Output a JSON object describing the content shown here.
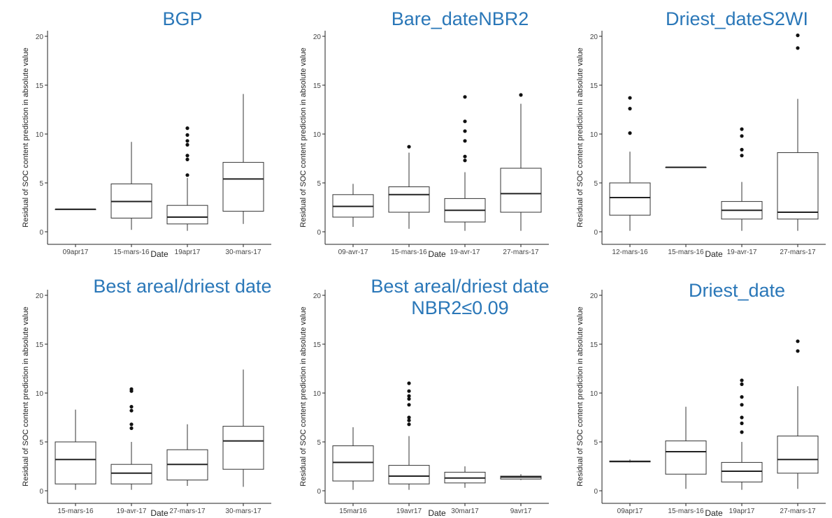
{
  "common": {
    "ylabel": "Residual of SOC content prediction in absolute value",
    "xlabel": "Date",
    "ylim": [
      0,
      20
    ],
    "yticks": [
      "0",
      "5",
      "10",
      "15",
      "20"
    ],
    "title_color": "#2a77b8"
  },
  "chart_data": [
    {
      "type": "boxplot",
      "title": "BGP",
      "subtitle": "",
      "xlabel": "Date",
      "ylabel": "Residual of SOC content prediction in absolute value",
      "ylim": [
        0,
        20
      ],
      "categories": [
        "09apr17",
        "15-mars-16",
        "19apr17",
        "30-mars-17"
      ],
      "boxes": [
        {
          "q1": 2.3,
          "median": 2.3,
          "q3": 2.3,
          "whisker_low": 2.3,
          "whisker_high": 2.3,
          "outliers": []
        },
        {
          "q1": 1.4,
          "median": 3.1,
          "q3": 4.9,
          "whisker_low": 0.2,
          "whisker_high": 9.2,
          "outliers": []
        },
        {
          "q1": 0.8,
          "median": 1.5,
          "q3": 2.7,
          "whisker_low": 0.1,
          "whisker_high": 5.5,
          "outliers": [
            5.8,
            7.4,
            7.8,
            8.9,
            9.3,
            9.9,
            10.6
          ]
        },
        {
          "q1": 2.1,
          "median": 5.4,
          "q3": 7.1,
          "whisker_low": 0.8,
          "whisker_high": 14.1,
          "outliers": []
        }
      ]
    },
    {
      "type": "boxplot",
      "title": "Bare_dateNBR2",
      "subtitle": "",
      "xlabel": "Date",
      "ylabel": "Residual of SOC content prediction in absolute value",
      "ylim": [
        0,
        20
      ],
      "categories": [
        "09-avr-17",
        "15-mars-16",
        "19-avr-17",
        "27-mars-17"
      ],
      "boxes": [
        {
          "q1": 1.5,
          "median": 2.6,
          "q3": 3.8,
          "whisker_low": 0.5,
          "whisker_high": 4.9,
          "outliers": []
        },
        {
          "q1": 2.0,
          "median": 3.8,
          "q3": 4.6,
          "whisker_low": 0.3,
          "whisker_high": 8.1,
          "outliers": [
            8.7
          ]
        },
        {
          "q1": 1.0,
          "median": 2.2,
          "q3": 3.4,
          "whisker_low": 0.1,
          "whisker_high": 6.1,
          "outliers": [
            7.3,
            7.7,
            9.3,
            10.3,
            11.3,
            13.8
          ]
        },
        {
          "q1": 2.0,
          "median": 3.9,
          "q3": 6.5,
          "whisker_low": 0.1,
          "whisker_high": 13.1,
          "outliers": [
            14.0
          ]
        }
      ]
    },
    {
      "type": "boxplot",
      "title": "Driest_dateS2WI",
      "subtitle": "",
      "xlabel": "Date",
      "ylabel": "Residual of SOC content prediction in absolute value",
      "ylim": [
        0,
        20
      ],
      "categories": [
        "12-mars-16",
        "15-mars-16",
        "19-avr-17",
        "27-mars-17"
      ],
      "boxes": [
        {
          "q1": 1.7,
          "median": 3.5,
          "q3": 5.0,
          "whisker_low": 0.1,
          "whisker_high": 8.2,
          "outliers": [
            10.1,
            12.6,
            13.7
          ]
        },
        {
          "q1": 6.6,
          "median": 6.6,
          "q3": 6.6,
          "whisker_low": 6.6,
          "whisker_high": 6.6,
          "outliers": []
        },
        {
          "q1": 1.3,
          "median": 2.2,
          "q3": 3.1,
          "whisker_low": 0.1,
          "whisker_high": 5.1,
          "outliers": [
            7.8,
            8.4,
            9.8,
            10.5
          ]
        },
        {
          "q1": 1.3,
          "median": 2.0,
          "q3": 8.1,
          "whisker_low": 0.1,
          "whisker_high": 13.6,
          "outliers": [
            18.8,
            20.1
          ]
        }
      ]
    },
    {
      "type": "boxplot",
      "title": "Best areal/driest date",
      "subtitle": "",
      "xlabel": "Date",
      "ylabel": "Residual of SOC content prediction in absolute value",
      "ylim": [
        0,
        20
      ],
      "categories": [
        "15-mars-16",
        "19-avr-17",
        "27-mars-17",
        "30-mars-17"
      ],
      "boxes": [
        {
          "q1": 0.7,
          "median": 3.2,
          "q3": 5.0,
          "whisker_low": 0.1,
          "whisker_high": 8.3,
          "outliers": []
        },
        {
          "q1": 0.7,
          "median": 1.8,
          "q3": 2.7,
          "whisker_low": 0.1,
          "whisker_high": 5.0,
          "outliers": [
            6.4,
            6.8,
            8.2,
            8.6,
            10.2,
            10.4
          ]
        },
        {
          "q1": 1.1,
          "median": 2.7,
          "q3": 4.2,
          "whisker_low": 0.5,
          "whisker_high": 6.8,
          "outliers": []
        },
        {
          "q1": 2.2,
          "median": 5.1,
          "q3": 6.6,
          "whisker_low": 0.4,
          "whisker_high": 12.4,
          "outliers": []
        }
      ]
    },
    {
      "type": "boxplot",
      "title": "Best areal/driest date",
      "subtitle": "NBR2≤0.09",
      "xlabel": "Date",
      "ylabel": "Residual of SOC content prediction in absolute value",
      "ylim": [
        0,
        20
      ],
      "categories": [
        "15mar16",
        "19avr17",
        "30mar17",
        "9avr17"
      ],
      "boxes": [
        {
          "q1": 1.0,
          "median": 2.9,
          "q3": 4.6,
          "whisker_low": 0.1,
          "whisker_high": 6.5,
          "outliers": []
        },
        {
          "q1": 0.7,
          "median": 1.5,
          "q3": 2.6,
          "whisker_low": 0.1,
          "whisker_high": 5.6,
          "outliers": [
            6.8,
            7.2,
            7.5,
            8.8,
            9.4,
            9.7,
            10.2,
            11.0
          ]
        },
        {
          "q1": 0.8,
          "median": 1.3,
          "q3": 1.9,
          "whisker_low": 0.3,
          "whisker_high": 2.5,
          "outliers": []
        },
        {
          "q1": 1.2,
          "median": 1.4,
          "q3": 1.5,
          "whisker_low": 1.1,
          "whisker_high": 1.7,
          "outliers": []
        }
      ]
    },
    {
      "type": "boxplot",
      "title": "Driest_date",
      "subtitle": "",
      "xlabel": "Date",
      "ylabel": "Residual of SOC content prediction in absolute value",
      "ylim": [
        0,
        20
      ],
      "categories": [
        "09apr17",
        "15-mars-16",
        "19apr17",
        "27-mars-17"
      ],
      "boxes": [
        {
          "q1": 2.95,
          "median": 3.0,
          "q3": 3.05,
          "whisker_low": 2.9,
          "whisker_high": 3.2,
          "outliers": []
        },
        {
          "q1": 1.7,
          "median": 4.0,
          "q3": 5.1,
          "whisker_low": 0.2,
          "whisker_high": 8.6,
          "outliers": []
        },
        {
          "q1": 0.9,
          "median": 2.0,
          "q3": 2.9,
          "whisker_low": 0.1,
          "whisker_high": 5.0,
          "outliers": [
            6.0,
            6.9,
            7.5,
            8.8,
            9.6,
            10.9,
            11.3
          ]
        },
        {
          "q1": 1.8,
          "median": 3.2,
          "q3": 5.6,
          "whisker_low": 0.2,
          "whisker_high": 10.7,
          "outliers": [
            14.3,
            15.3
          ]
        }
      ]
    }
  ]
}
